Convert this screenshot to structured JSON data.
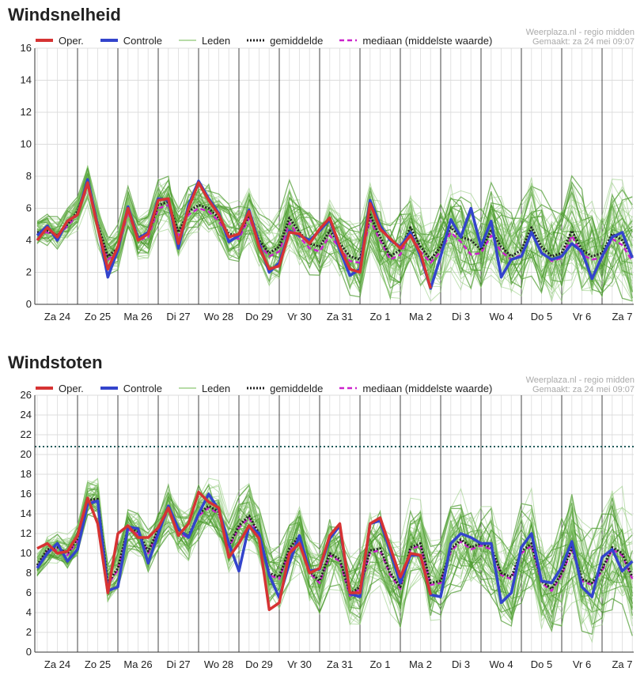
{
  "legend": {
    "oper": "Oper.",
    "controle": "Controle",
    "leden": "Leden",
    "gemiddelde": "gemiddelde",
    "mediaan": "mediaan (middelste waarde)"
  },
  "credit": {
    "source": "Weerplaza.nl - regio midden",
    "made": "Gemaakt: za 24 mei 09:07"
  },
  "colors": {
    "oper": "#d63333",
    "controle": "#3344cc",
    "leden": "#5aab3a",
    "gemiddelde": "#222222",
    "mediaan": "#cc22cc",
    "threshold": "#1f5a5a"
  },
  "days": [
    "Za 24",
    "Zo 25",
    "Ma 26",
    "Di 27",
    "Wo 28",
    "Do 29",
    "Vr 30",
    "Za 31",
    "Zo 1",
    "Ma 2",
    "Di 3",
    "Wo 4",
    "Do 5",
    "Vr 6",
    "Za 7"
  ],
  "chart_data": [
    {
      "type": "line",
      "title": "Windsnelheid",
      "ylim": [
        0,
        16
      ],
      "yticks": [
        0,
        2,
        4,
        6,
        8,
        10,
        12,
        14,
        16
      ],
      "grid": true,
      "legend_position": "top",
      "x_unit": "steps of 6 hours starting Za 24 00:00",
      "series": [
        {
          "name": "Oper.",
          "values": [
            4.0,
            4.8,
            4.2,
            5.2,
            5.6,
            7.6,
            4.8,
            2.2,
            3.6,
            6.0,
            4.0,
            4.4,
            6.5,
            6.6,
            3.8,
            6.0,
            7.6,
            6.5,
            5.6,
            4.2,
            4.4,
            5.8,
            3.6,
            2.2,
            2.4,
            4.5,
            4.4,
            3.8,
            4.7,
            5.4,
            3.6,
            2.2,
            2.0,
            6.3,
            4.7,
            4.1,
            3.5,
            4.3,
            3.2,
            1.0
          ]
        },
        {
          "name": "Controle",
          "values": [
            4.3,
            4.9,
            4.0,
            5.2,
            5.6,
            7.8,
            4.9,
            1.7,
            3.4,
            6.1,
            4.1,
            4.5,
            6.6,
            6.5,
            3.5,
            6.2,
            7.7,
            6.6,
            5.7,
            3.9,
            4.3,
            5.9,
            3.8,
            2.0,
            2.6,
            4.6,
            4.3,
            4.0,
            4.6,
            5.3,
            3.4,
            1.8,
            2.2,
            6.5,
            4.9,
            4.0,
            3.6,
            4.5,
            3.0,
            1.0,
            3.0,
            5.3,
            4.2,
            6.0,
            3.6,
            5.2,
            1.7,
            2.8,
            3.0,
            4.5,
            3.2,
            2.8,
            3.0,
            3.8,
            3.3,
            1.6,
            3.0,
            4.2,
            4.5,
            2.9
          ]
        },
        {
          "name": "gemiddelde",
          "values": [
            4.5,
            4.6,
            4.3,
            5.0,
            5.8,
            7.6,
            5.0,
            3.0,
            3.5,
            6.0,
            4.2,
            4.4,
            6.2,
            6.4,
            4.5,
            5.8,
            6.2,
            6.0,
            5.4,
            4.4,
            4.3,
            5.6,
            4.0,
            3.2,
            3.6,
            5.4,
            4.5,
            3.8,
            3.6,
            4.6,
            3.8,
            3.0,
            2.8,
            5.6,
            4.2,
            3.0,
            3.4,
            4.8,
            3.6,
            2.8,
            3.6,
            4.8,
            4.2,
            4.0,
            3.4,
            4.6,
            3.6,
            3.0,
            3.4,
            4.8,
            3.6,
            3.0,
            3.2,
            4.6,
            3.4,
            3.0,
            3.2,
            4.4,
            4.0,
            3.0
          ]
        },
        {
          "name": "mediaan (middelste waarde)",
          "values": [
            4.4,
            4.5,
            4.2,
            4.9,
            5.6,
            7.4,
            4.8,
            2.8,
            3.3,
            5.8,
            4.0,
            4.2,
            6.0,
            6.2,
            4.3,
            5.6,
            6.0,
            5.8,
            5.2,
            4.2,
            4.1,
            5.4,
            3.8,
            3.0,
            3.3,
            5.1,
            4.2,
            3.5,
            3.3,
            4.3,
            3.5,
            2.7,
            2.6,
            5.3,
            4.0,
            2.8,
            3.1,
            4.5,
            3.3,
            2.6,
            3.3,
            4.5,
            3.9,
            3.1,
            3.2,
            4.3,
            3.3,
            2.8,
            3.1,
            4.5,
            3.3,
            2.7,
            2.9,
            4.3,
            3.1,
            2.8,
            2.9,
            4.1,
            3.7,
            2.7
          ]
        }
      ]
    },
    {
      "type": "line",
      "title": "Windstoten",
      "ylim": [
        0,
        26
      ],
      "yticks": [
        0,
        2,
        4,
        6,
        8,
        10,
        12,
        14,
        16,
        18,
        20,
        22,
        24,
        26
      ],
      "grid": true,
      "legend_position": "top",
      "threshold": 20.8,
      "x_unit": "steps of 6 hours starting Za 24 00:00",
      "series": [
        {
          "name": "Oper.",
          "values": [
            10.5,
            11.0,
            10.0,
            10.2,
            11.8,
            15.6,
            13.0,
            6.0,
            12.0,
            12.8,
            11.6,
            11.6,
            12.6,
            14.6,
            11.8,
            13.0,
            16.2,
            15.2,
            14.6,
            9.6,
            11.0,
            12.8,
            11.5,
            4.3,
            5.0,
            10.0,
            11.0,
            8.0,
            8.5,
            11.8,
            13.0,
            6.0,
            6.0,
            13.0,
            13.6,
            10.6,
            7.6,
            10.0,
            9.8,
            5.8
          ]
        },
        {
          "name": "Controle",
          "values": [
            8.5,
            10.0,
            11.0,
            9.2,
            10.4,
            15.0,
            15.3,
            6.2,
            6.6,
            12.7,
            12.5,
            9.0,
            12.0,
            14.8,
            12.5,
            11.6,
            14.0,
            16.0,
            14.4,
            11.0,
            8.2,
            12.8,
            12.0,
            7.8,
            5.5,
            9.0,
            11.8,
            8.2,
            8.4,
            11.5,
            12.8,
            5.9,
            5.6,
            13.0,
            13.3,
            10.2,
            7.0,
            9.8,
            9.8,
            5.8,
            5.6,
            11.0,
            12.0,
            11.6,
            11.0,
            11.0,
            5.0,
            6.0,
            10.6,
            12.0,
            7.2,
            7.0,
            8.6,
            11.2,
            6.6,
            5.6,
            9.6,
            10.4,
            8.2,
            9.2
          ]
        },
        {
          "name": "gemiddelde",
          "values": [
            8.8,
            10.4,
            10.6,
            10.0,
            11.5,
            15.4,
            15.5,
            7.0,
            8.5,
            12.6,
            12.2,
            10.2,
            12.4,
            14.6,
            12.2,
            11.8,
            14.0,
            14.8,
            14.2,
            10.8,
            12.8,
            13.8,
            12.0,
            8.0,
            7.6,
            10.5,
            11.8,
            8.2,
            7.2,
            10.0,
            9.4,
            5.9,
            6.6,
            10.3,
            10.5,
            8.0,
            6.6,
            10.6,
            11.0,
            7.0,
            7.2,
            10.4,
            11.4,
            10.6,
            11.0,
            10.6,
            8.0,
            7.6,
            10.2,
            11.0,
            7.2,
            6.4,
            8.0,
            10.6,
            7.4,
            7.0,
            8.4,
            10.6,
            10.0,
            7.6
          ]
        },
        {
          "name": "mediaan (middelste waarde)",
          "values": [
            8.6,
            10.2,
            10.4,
            9.8,
            11.3,
            15.2,
            15.3,
            6.8,
            8.3,
            12.4,
            12.0,
            10.0,
            12.2,
            14.4,
            12.0,
            11.6,
            13.8,
            14.6,
            14.0,
            10.6,
            12.6,
            13.6,
            11.8,
            7.8,
            7.4,
            10.3,
            11.6,
            8.0,
            7.0,
            9.8,
            9.2,
            5.7,
            6.4,
            10.1,
            10.3,
            7.8,
            6.4,
            10.4,
            10.8,
            6.8,
            7.0,
            10.2,
            11.2,
            10.4,
            10.8,
            10.4,
            7.8,
            7.4,
            10.0,
            10.8,
            7.0,
            6.2,
            7.8,
            10.4,
            7.2,
            6.8,
            8.2,
            10.4,
            9.8,
            7.4
          ]
        }
      ]
    }
  ]
}
